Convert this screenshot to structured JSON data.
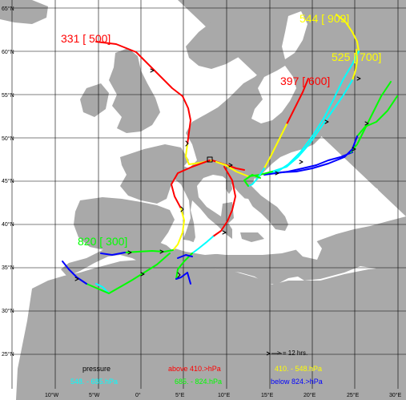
{
  "map": {
    "lat_ticks": [
      "65°N",
      "60°N",
      "55°N",
      "50°N",
      "45°N",
      "40°N",
      "35°N",
      "30°N",
      "25°N"
    ],
    "lon_ticks": [
      "10°W",
      "5°W",
      "0°",
      "5°E",
      "10°E",
      "15°E",
      "20°E",
      "25°E",
      "30°E"
    ],
    "colors": {
      "sea": "#ffffff",
      "land": "#a9a9a9",
      "grid": "#000000",
      "above_410": "#ff0000",
      "band_410_548": "#ffff00",
      "band_548_685": "#00ffff",
      "band_685_824": "#00ff00",
      "below_824": "#0000ff"
    },
    "trajectory_labels": [
      {
        "text": "331 [ 500]",
        "color": "#ff0000"
      },
      {
        "text": "544 [ 909]",
        "color": "#ffff00"
      },
      {
        "text": "525 [ 700]",
        "color": "#ffff00"
      },
      {
        "text": "397 [ 600]",
        "color": "#ff0000"
      },
      {
        "text": "820 [ 300]",
        "color": "#00ff00"
      }
    ],
    "legend": {
      "marker_note": "> = 12 hrs.",
      "title": "pressure",
      "items": [
        {
          "label": "above  410.>hPa",
          "color": "#ff0000"
        },
        {
          "label": "410. -    548.hPa",
          "color": "#ffff00"
        },
        {
          "label": "548. -    685.hPa",
          "color": "#00ffff"
        },
        {
          "label": "685. -    824.hPa",
          "color": "#00ff00"
        },
        {
          "label": "below   824.>hPa",
          "color": "#0000ff"
        }
      ]
    }
  }
}
